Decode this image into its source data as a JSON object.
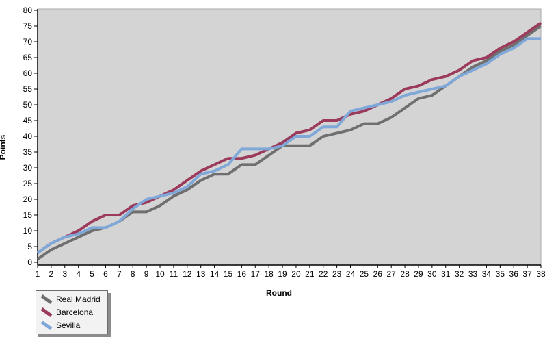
{
  "chart_data": {
    "type": "line",
    "title": "",
    "xlabel": "Round",
    "ylabel": "Points",
    "x": [
      1,
      2,
      3,
      4,
      5,
      6,
      7,
      8,
      9,
      10,
      11,
      12,
      13,
      14,
      15,
      16,
      17,
      18,
      19,
      20,
      21,
      22,
      23,
      24,
      25,
      26,
      27,
      28,
      29,
      30,
      31,
      32,
      33,
      34,
      35,
      36,
      37,
      38
    ],
    "xlim": [
      1,
      38
    ],
    "ylim": [
      0,
      80
    ],
    "yticks": [
      0,
      5,
      10,
      15,
      20,
      25,
      30,
      35,
      40,
      45,
      50,
      55,
      60,
      65,
      70,
      75,
      80
    ],
    "grid": false,
    "legend_position": "bottom-left",
    "plot_background": "#d4d4d4",
    "axis_color": "#000000",
    "series": [
      {
        "name": "Real Madrid",
        "color": "#6f6f6f",
        "values": [
          1,
          4,
          6,
          8,
          10,
          11,
          13,
          16,
          16,
          18,
          21,
          23,
          26,
          28,
          28,
          31,
          31,
          34,
          37,
          37,
          37,
          40,
          41,
          42,
          44,
          44,
          46,
          49,
          52,
          53,
          56,
          59,
          62,
          64,
          67,
          69,
          72,
          75
        ]
      },
      {
        "name": "Barcelona",
        "color": "#9b3a5a",
        "values": [
          3,
          6,
          8,
          10,
          13,
          15,
          15,
          18,
          19,
          21,
          23,
          26,
          29,
          31,
          33,
          33,
          34,
          36,
          38,
          41,
          42,
          45,
          45,
          47,
          48,
          50,
          52,
          55,
          56,
          58,
          59,
          61,
          64,
          65,
          68,
          70,
          73,
          76
        ]
      },
      {
        "name": "Sevilla",
        "color": "#7fa8d9",
        "values": [
          3,
          6,
          8,
          9,
          11,
          11,
          13,
          17,
          20,
          21,
          22,
          24,
          28,
          29,
          31,
          36,
          36,
          36,
          37,
          40,
          40,
          43,
          43,
          48,
          49,
          50,
          51,
          53,
          54,
          55,
          56,
          59,
          61,
          63,
          66,
          68,
          71,
          71
        ]
      }
    ]
  }
}
